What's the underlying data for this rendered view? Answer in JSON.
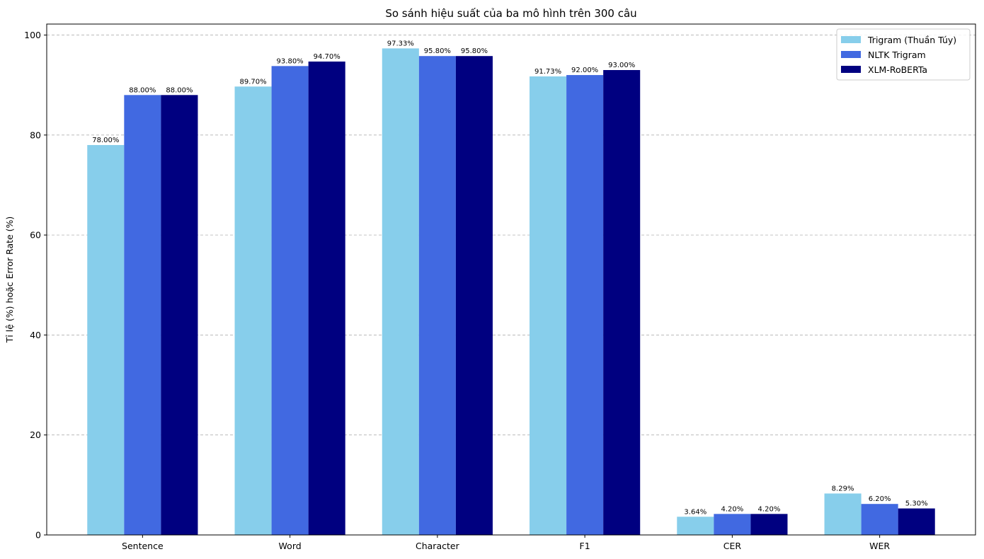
{
  "chart_data": {
    "type": "bar",
    "title": "So sánh hiệu suất của ba mô hình trên 300 câu",
    "xlabel": "",
    "ylabel": "Tỉ lệ (%) hoặc Error Rate (%)",
    "ylim": [
      0,
      102.2
    ],
    "yticks": [
      0,
      20,
      40,
      60,
      80,
      100
    ],
    "grid": "horizontal dashed",
    "legend_position": "top-right",
    "categories": [
      "Sentence",
      "Word",
      "Character",
      "F1",
      "CER",
      "WER"
    ],
    "series": [
      {
        "name": "Trigram (Thuần Túy)",
        "color": "#87CEEB",
        "values": [
          78.0,
          89.7,
          97.33,
          91.73,
          3.64,
          8.29
        ],
        "labels": [
          "78.00%",
          "89.70%",
          "97.33%",
          "91.73%",
          "3.64%",
          "8.29%"
        ]
      },
      {
        "name": "NLTK Trigram",
        "color": "#4169E1",
        "values": [
          88.0,
          93.8,
          95.8,
          92.0,
          4.2,
          6.2
        ],
        "labels": [
          "88.00%",
          "93.80%",
          "95.80%",
          "92.00%",
          "4.20%",
          "6.20%"
        ]
      },
      {
        "name": "XLM-RoBERTa",
        "color": "#000080",
        "values": [
          88.0,
          94.7,
          95.8,
          93.0,
          4.2,
          5.3
        ],
        "labels": [
          "88.00%",
          "94.70%",
          "95.80%",
          "93.00%",
          "4.20%",
          "5.30%"
        ]
      }
    ]
  }
}
